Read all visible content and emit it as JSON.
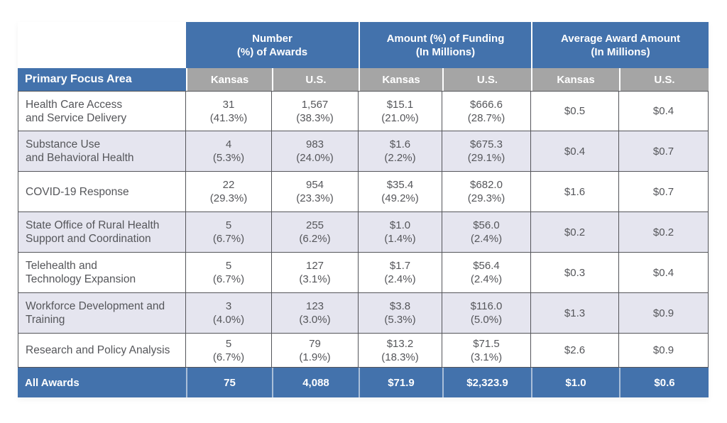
{
  "chart_data": {
    "type": "table",
    "corner_label": "Primary Focus Area",
    "column_groups": [
      {
        "label": "Number\n(%) of Awards",
        "columns": [
          "Kansas",
          "U.S."
        ]
      },
      {
        "label": "Amount (%) of Funding\n(In Millions)",
        "columns": [
          "Kansas",
          "U.S."
        ]
      },
      {
        "label": "Average Award Amount\n(In Millions)",
        "columns": [
          "Kansas",
          "U.S."
        ]
      }
    ],
    "rows": [
      {
        "label": "Health Care Access\nand Service Delivery",
        "cells": [
          {
            "value": "31",
            "pct": "(41.3%)"
          },
          {
            "value": "1,567",
            "pct": "(38.3%)"
          },
          {
            "value": "$15.1",
            "pct": "(21.0%)"
          },
          {
            "value": "$666.6",
            "pct": "(28.7%)"
          },
          {
            "value": "$0.5",
            "pct": ""
          },
          {
            "value": "$0.4",
            "pct": ""
          }
        ]
      },
      {
        "label": "Substance Use\nand Behavioral Health",
        "cells": [
          {
            "value": "4",
            "pct": "(5.3%)"
          },
          {
            "value": "983",
            "pct": "(24.0%)"
          },
          {
            "value": "$1.6",
            "pct": "(2.2%)"
          },
          {
            "value": "$675.3",
            "pct": "(29.1%)"
          },
          {
            "value": "$0.4",
            "pct": ""
          },
          {
            "value": "$0.7",
            "pct": ""
          }
        ]
      },
      {
        "label": "COVID-19 Response",
        "cells": [
          {
            "value": "22",
            "pct": "(29.3%)"
          },
          {
            "value": "954",
            "pct": "(23.3%)"
          },
          {
            "value": "$35.4",
            "pct": "(49.2%)"
          },
          {
            "value": "$682.0",
            "pct": "(29.3%)"
          },
          {
            "value": "$1.6",
            "pct": ""
          },
          {
            "value": "$0.7",
            "pct": ""
          }
        ]
      },
      {
        "label": "State Office of Rural Health\nSupport and Coordination",
        "cells": [
          {
            "value": "5",
            "pct": "(6.7%)"
          },
          {
            "value": "255",
            "pct": "(6.2%)"
          },
          {
            "value": "$1.0",
            "pct": "(1.4%)"
          },
          {
            "value": "$56.0",
            "pct": "(2.4%)"
          },
          {
            "value": "$0.2",
            "pct": ""
          },
          {
            "value": "$0.2",
            "pct": ""
          }
        ]
      },
      {
        "label": "Telehealth and\nTechnology Expansion",
        "cells": [
          {
            "value": "5",
            "pct": "(6.7%)"
          },
          {
            "value": "127",
            "pct": "(3.1%)"
          },
          {
            "value": "$1.7",
            "pct": "(2.4%)"
          },
          {
            "value": "$56.4",
            "pct": "(2.4%)"
          },
          {
            "value": "$0.3",
            "pct": ""
          },
          {
            "value": "$0.4",
            "pct": ""
          }
        ]
      },
      {
        "label": "Workforce Development and\nTraining",
        "cells": [
          {
            "value": "3",
            "pct": "(4.0%)"
          },
          {
            "value": "123",
            "pct": "(3.0%)"
          },
          {
            "value": "$3.8",
            "pct": "(5.3%)"
          },
          {
            "value": "$116.0",
            "pct": "(5.0%)"
          },
          {
            "value": "$1.3",
            "pct": ""
          },
          {
            "value": "$0.9",
            "pct": ""
          }
        ]
      },
      {
        "label": "Research and Policy Analysis",
        "cells": [
          {
            "value": "5",
            "pct": "(6.7%)"
          },
          {
            "value": "79",
            "pct": "(1.9%)"
          },
          {
            "value": "$13.2",
            "pct": "(18.3%)"
          },
          {
            "value": "$71.5",
            "pct": "(3.1%)"
          },
          {
            "value": "$2.6",
            "pct": ""
          },
          {
            "value": "$0.9",
            "pct": ""
          }
        ]
      }
    ],
    "footer": {
      "label": "All Awards",
      "cells": [
        "75",
        "4,088",
        "$71.9",
        "$2,323.9",
        "$1.0",
        "$0.6"
      ]
    }
  },
  "colors": {
    "header_blue": "#4372ac",
    "subheader_gray": "#a5a5a5",
    "row_stripe": "#e5e5ef",
    "row_white": "#ffffff",
    "text_dark": "#55565a",
    "border_gray": "#54555a",
    "header_text": "#ffffff"
  }
}
